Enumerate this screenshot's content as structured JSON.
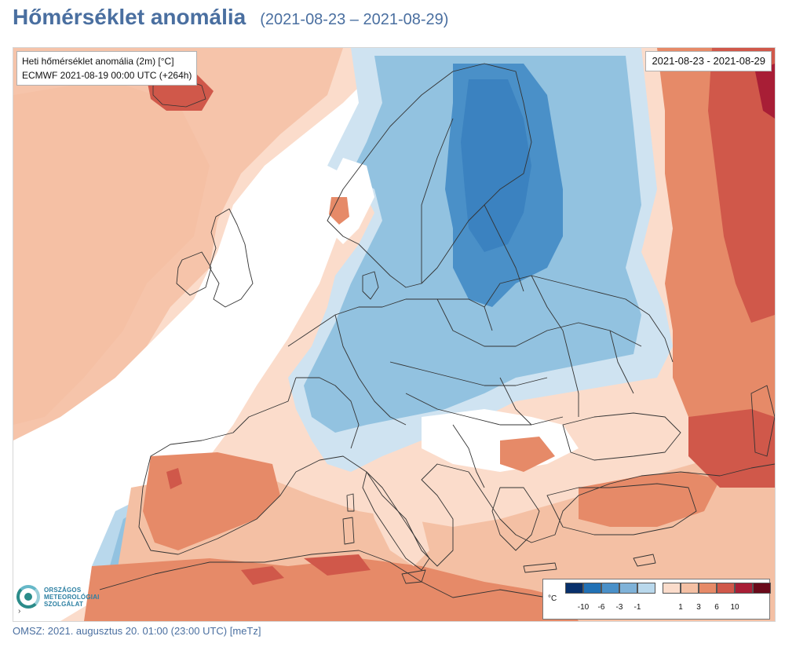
{
  "header": {
    "title": "Hőmérséklet anomália",
    "subtitle": "(2021-08-23 – 2021-08-29)"
  },
  "map": {
    "info_line1": "Heti hőmérséklet anomália (2m) [°C]",
    "info_line2": "ECMWF 2021-08-19 00:00 UTC (+264h)",
    "date_range": "2021-08-23 - 2021-08-29",
    "colors": {
      "c-10": "#08306b",
      "c-6": "#2171b5",
      "c-3": "#4a90c8",
      "c-1": "#92c2e0",
      "c0m": "#cfe3f1",
      "c0": "#ffffff",
      "c0p": "#fbdccb",
      "c1": "#f4c0a4",
      "c3": "#e68a68",
      "c6": "#d0584a",
      "c10": "#a81e36",
      "c10p": "#7a0a1e",
      "border": "#333333"
    }
  },
  "logo": {
    "line1": "ORSZÁGOS",
    "line2": "METEOROLÓGIAI",
    "line3": "SZOLGÁLAT"
  },
  "legend": {
    "unit": "°C",
    "cold_ticks": [
      "-10",
      "-6",
      "-3",
      "-1"
    ],
    "warm_ticks": [
      "1",
      "3",
      "6",
      "10"
    ],
    "cold_colors": [
      "#08306b",
      "#2171b5",
      "#4a90c8",
      "#7fb2d8",
      "#b9d8ec"
    ],
    "warm_colors": [
      "#fbdccb",
      "#f4c0a4",
      "#e68a68",
      "#d0584a",
      "#a81e36",
      "#6a0a1a"
    ]
  },
  "side_marker": "›",
  "footer": {
    "text": "OMSZ: 2021. augusztus 20. 01:00 (23:00  UTC)  [meTz]"
  }
}
